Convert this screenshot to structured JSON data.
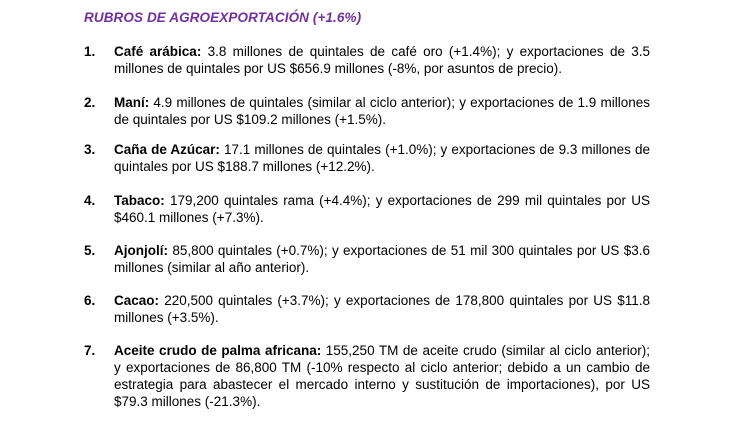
{
  "section": {
    "title": "RUBROS DE AGROEXPORTACIÓN (+1.6%)",
    "title_color": "#7030a0"
  },
  "items": [
    {
      "number": "1.",
      "name": "Café arábica:",
      "text": " 3.8 millones de quintales de café oro (+1.4%); y exportaciones de 3.5 millones de quintales por US $656.9 millones (-8%, por asuntos de precio)."
    },
    {
      "number": "2.",
      "name": "Maní:",
      "text": " 4.9 millones de quintales (similar al ciclo anterior); y exportaciones de 1.9 millones de quintales por US $109.2 millones (+1.5%)."
    },
    {
      "number": "3.",
      "name": "Caña de Azúcar:",
      "text": " 17.1 millones de quintales (+1.0%); y exportaciones de 9.3 millones de quintales por US $188.7 millones (+12.2%)."
    },
    {
      "number": "4.",
      "name": "Tabaco:",
      "text": " 179,200 quintales rama (+4.4%); y exportaciones de 299 mil quintales por US $460.1 millones (+7.3%)."
    },
    {
      "number": "5.",
      "name": "Ajonjolí:",
      "text": " 85,800 quintales (+0.7%); y exportaciones de 51 mil 300 quintales por US $3.6 millones (similar al año anterior)."
    },
    {
      "number": "6.",
      "name": "Cacao:",
      "text": " 220,500 quintales (+3.7%); y exportaciones de 178,800 quintales por US $11.8 millones (+3.5%)."
    },
    {
      "number": "7.",
      "name": "Aceite crudo de palma africana:",
      "text": " 155,250 TM de aceite crudo (similar al ciclo anterior); y exportaciones de 86,800 TM (-10% respecto al ciclo anterior; debido a un cambio de estrategia para abastecer el mercado interno y sustitución de importaciones), por US $79.3 millones (-21.3%)."
    }
  ]
}
